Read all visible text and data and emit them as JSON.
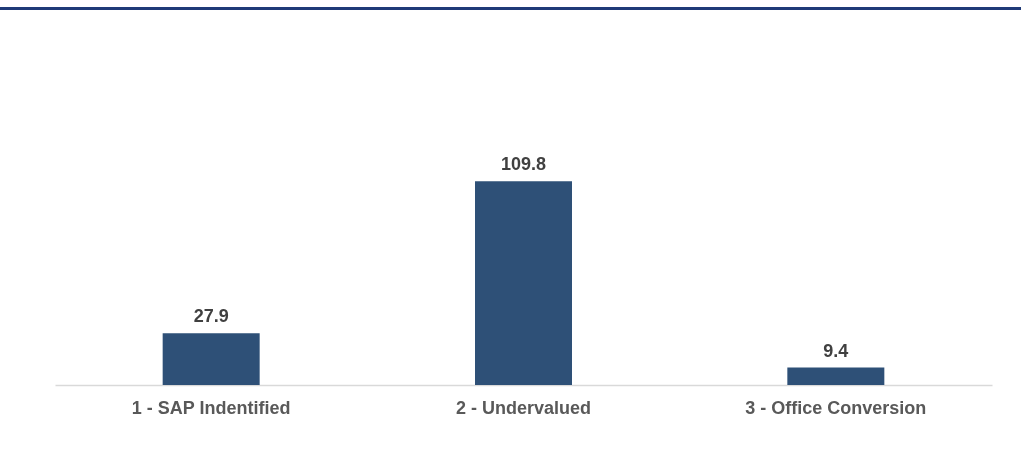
{
  "chart_data": {
    "type": "bar",
    "categories": [
      "1 - SAP Indentified",
      "2 - Undervalued",
      "3 - Office Conversion"
    ],
    "values": [
      27.9,
      109.8,
      9.4
    ],
    "color": "#2e5077",
    "data_labels": true
  }
}
